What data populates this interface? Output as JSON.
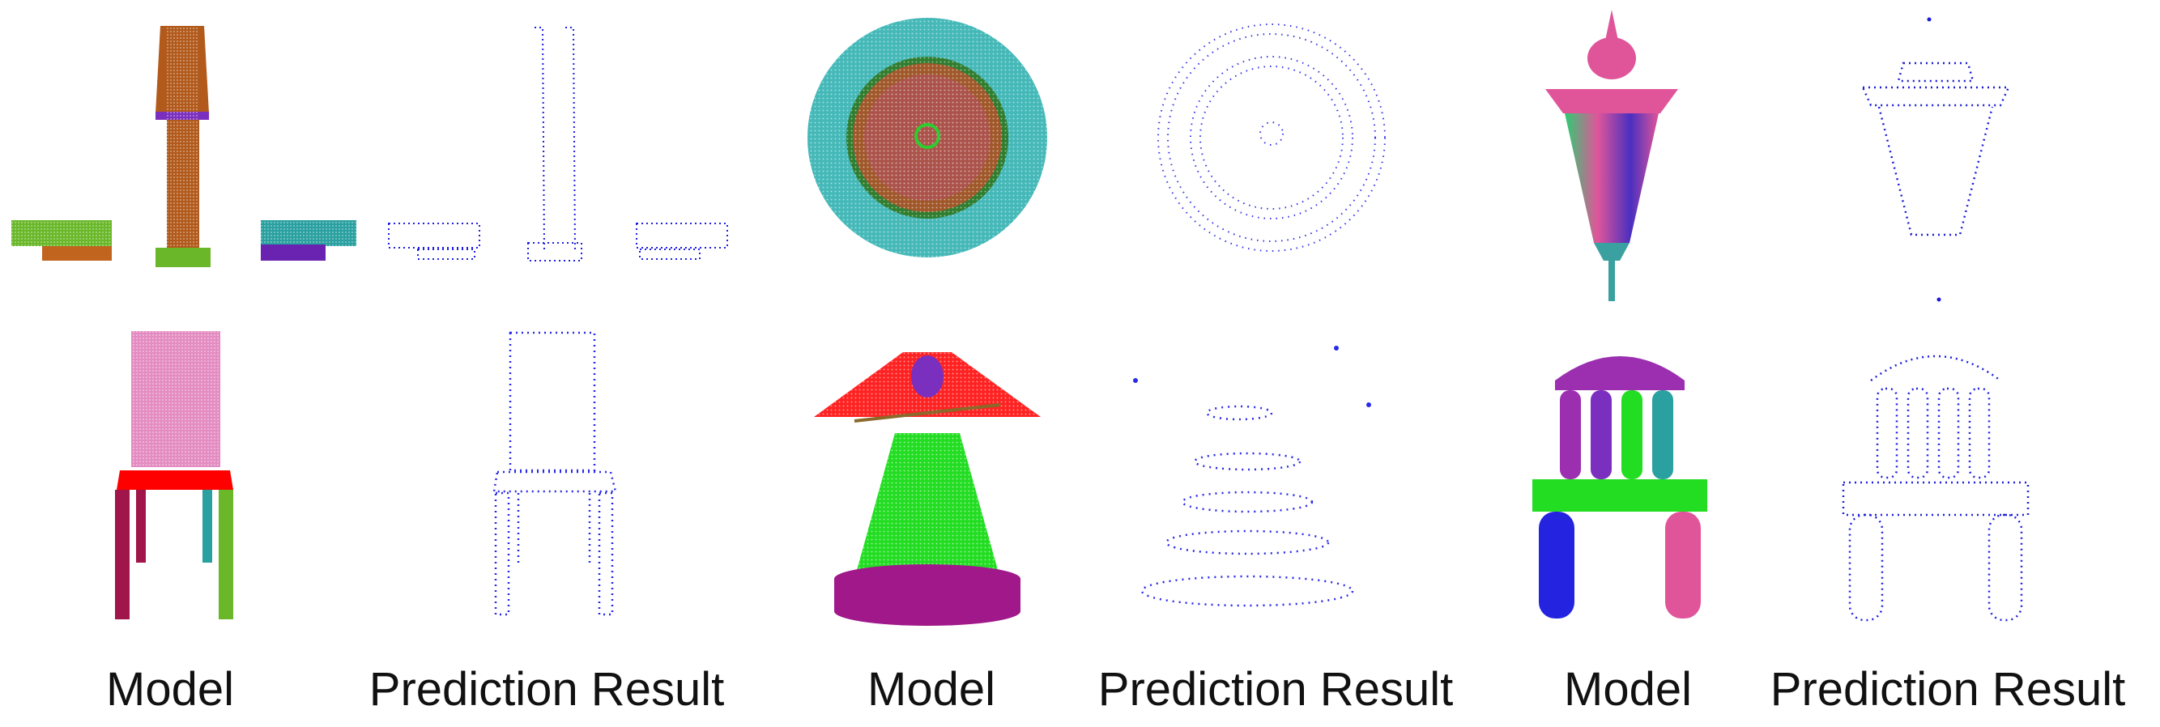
{
  "figure": {
    "captions": [
      "Model",
      "Prediction Result",
      "Model",
      "Prediction Result",
      "Model",
      "Prediction Result"
    ]
  },
  "panels": [
    {
      "id": "table-model",
      "kind": "segmented point cloud",
      "colors": [
        "#1aa1a1",
        "#7b2fbe",
        "#b25a1c",
        "#6ab82a",
        "#ff6f1a"
      ]
    },
    {
      "id": "table-prediction",
      "kind": "predicted points",
      "colors": [
        "#2020e0"
      ]
    },
    {
      "id": "disc-model",
      "kind": "segmented point cloud",
      "colors": [
        "#45b8b8",
        "#a0582a",
        "#2f7d2f",
        "#c04a8a"
      ]
    },
    {
      "id": "disc-prediction",
      "kind": "predicted points",
      "colors": [
        "#3434e6"
      ]
    },
    {
      "id": "lantern-model",
      "kind": "segmented point cloud",
      "colors": [
        "#e0559a",
        "#3aa0a0",
        "#4a2fc0",
        "#2ecc71"
      ]
    },
    {
      "id": "lantern-prediction",
      "kind": "predicted points",
      "colors": [
        "#1c1cd6"
      ]
    },
    {
      "id": "chair-model",
      "kind": "segmented point cloud",
      "colors": [
        "#e48cc2",
        "#ff0000",
        "#a0154a",
        "#6ab82a",
        "#2aa0a0"
      ]
    },
    {
      "id": "chair-prediction",
      "kind": "predicted points",
      "colors": [
        "#2a2ae8"
      ]
    },
    {
      "id": "lamp-model",
      "kind": "segmented point cloud",
      "colors": [
        "#ff2222",
        "#7b2fbe",
        "#22dd22",
        "#a0188a"
      ]
    },
    {
      "id": "lamp-prediction",
      "kind": "predicted points",
      "colors": [
        "#2a2ae8"
      ]
    },
    {
      "id": "bench-model",
      "kind": "segmented point cloud",
      "colors": [
        "#9b2fb0",
        "#22dd22",
        "#2424e0",
        "#e0559a",
        "#2aa0a0"
      ]
    },
    {
      "id": "bench-prediction",
      "kind": "predicted points",
      "colors": [
        "#2020e0"
      ]
    }
  ]
}
